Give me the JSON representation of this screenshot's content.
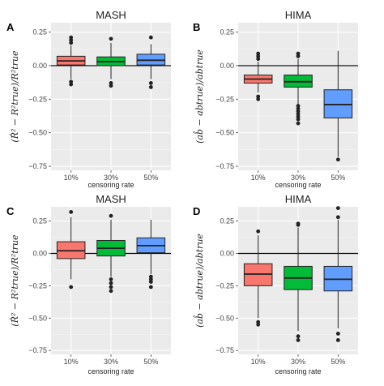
{
  "chart_data": [
    {
      "type": "box",
      "panel_tag": "A",
      "title": "MASH",
      "ylabel": "(R̂² − R²true)/R²true",
      "xlabel": "censoring rate",
      "categories": [
        "10%",
        "30%",
        "50%"
      ],
      "ylim": [
        -0.78,
        0.32
      ],
      "yticks": [
        0.25,
        0.0,
        -0.25,
        -0.5,
        -0.75
      ],
      "ytick_labels": [
        "0.25",
        "0.00",
        "−0.25",
        "−0.50",
        "−0.75"
      ],
      "reference_line": 0,
      "colors": [
        "#f8766d",
        "#00ba38",
        "#619cff"
      ],
      "boxes": [
        {
          "q1": 0.005,
          "median": 0.035,
          "q3": 0.07,
          "whisker_low": -0.1,
          "whisker_high": 0.15,
          "outliers": [
            0.21,
            0.19,
            0.17,
            -0.12,
            -0.14
          ]
        },
        {
          "q1": 0.0,
          "median": 0.03,
          "q3": 0.065,
          "whisker_low": -0.1,
          "whisker_high": 0.17,
          "outliers": [
            0.2,
            -0.13,
            -0.15
          ]
        },
        {
          "q1": 0.005,
          "median": 0.04,
          "q3": 0.085,
          "whisker_low": -0.1,
          "whisker_high": 0.16,
          "outliers": [
            0.21,
            -0.13,
            -0.16
          ]
        }
      ]
    },
    {
      "type": "box",
      "panel_tag": "B",
      "title": "HIMA",
      "ylabel": "(ab̂ − abtrue)/abtrue",
      "xlabel": "censoring rate",
      "categories": [
        "10%",
        "30%",
        "50%"
      ],
      "ylim": [
        -0.78,
        0.32
      ],
      "yticks": [
        0.25,
        0.0,
        -0.25,
        -0.5,
        -0.75
      ],
      "ytick_labels": [
        "0.25",
        "0.00",
        "−0.25",
        "−0.50",
        "−0.75"
      ],
      "reference_line": 0,
      "colors": [
        "#f8766d",
        "#00ba38",
        "#619cff"
      ],
      "boxes": [
        {
          "q1": -0.13,
          "median": -0.1,
          "q3": -0.07,
          "whisker_low": -0.2,
          "whisker_high": 0.03,
          "outliers": [
            0.09,
            0.07,
            0.05,
            -0.23,
            -0.25
          ]
        },
        {
          "q1": -0.16,
          "median": -0.12,
          "q3": -0.07,
          "whisker_low": -0.3,
          "whisker_high": 0.05,
          "outliers": [
            0.09,
            0.07,
            -0.3,
            -0.32,
            -0.34,
            -0.36,
            -0.38,
            -0.4,
            -0.43
          ]
        },
        {
          "q1": -0.39,
          "median": -0.29,
          "q3": -0.18,
          "whisker_low": -0.68,
          "whisker_high": 0.11,
          "outliers": [
            -0.7
          ]
        }
      ]
    },
    {
      "type": "box",
      "panel_tag": "C",
      "title": "MASH",
      "ylabel": "(R̂² − R²true)/R²true",
      "xlabel": "censoring rate",
      "categories": [
        "10%",
        "30%",
        "50%"
      ],
      "ylim": [
        -0.78,
        0.36
      ],
      "yticks": [
        0.25,
        0.0,
        -0.25,
        -0.5,
        -0.75
      ],
      "ytick_labels": [
        "0.25",
        "0.00",
        "−0.25",
        "−0.50",
        "−0.75"
      ],
      "reference_line": 0,
      "colors": [
        "#f8766d",
        "#00ba38",
        "#619cff"
      ],
      "boxes": [
        {
          "q1": -0.04,
          "median": 0.02,
          "q3": 0.09,
          "whisker_low": -0.2,
          "whisker_high": 0.28,
          "outliers": [
            0.32,
            -0.26
          ]
        },
        {
          "q1": -0.02,
          "median": 0.04,
          "q3": 0.1,
          "whisker_low": -0.18,
          "whisker_high": 0.26,
          "outliers": [
            0.29,
            -0.2,
            -0.23,
            -0.26,
            -0.29
          ]
        },
        {
          "q1": 0.005,
          "median": 0.06,
          "q3": 0.12,
          "whisker_low": -0.16,
          "whisker_high": 0.26,
          "outliers": [
            -0.18,
            -0.2,
            -0.22,
            -0.26
          ]
        }
      ]
    },
    {
      "type": "box",
      "panel_tag": "D",
      "title": "HIMA",
      "ylabel": "(ab̂ − abtrue)/abtrue",
      "xlabel": "censoring rate",
      "categories": [
        "10%",
        "30%",
        "50%"
      ],
      "ylim": [
        -0.78,
        0.36
      ],
      "yticks": [
        0.25,
        0.0,
        -0.25,
        -0.5,
        -0.75
      ],
      "ytick_labels": [
        "0.25",
        "0.00",
        "−0.25",
        "−0.50",
        "−0.75"
      ],
      "reference_line": 0,
      "colors": [
        "#f8766d",
        "#00ba38",
        "#619cff"
      ],
      "boxes": [
        {
          "q1": -0.25,
          "median": -0.16,
          "q3": -0.08,
          "whisker_low": -0.5,
          "whisker_high": 0.14,
          "outliers": [
            0.17,
            -0.53,
            -0.55
          ]
        },
        {
          "q1": -0.28,
          "median": -0.19,
          "q3": -0.1,
          "whisker_low": -0.6,
          "whisker_high": 0.2,
          "outliers": [
            0.23,
            0.22,
            -0.64,
            -0.67
          ]
        },
        {
          "q1": -0.29,
          "median": -0.2,
          "q3": -0.1,
          "whisker_low": -0.58,
          "whisker_high": 0.26,
          "outliers": [
            0.35,
            0.28,
            -0.62,
            -0.67
          ]
        }
      ]
    }
  ]
}
